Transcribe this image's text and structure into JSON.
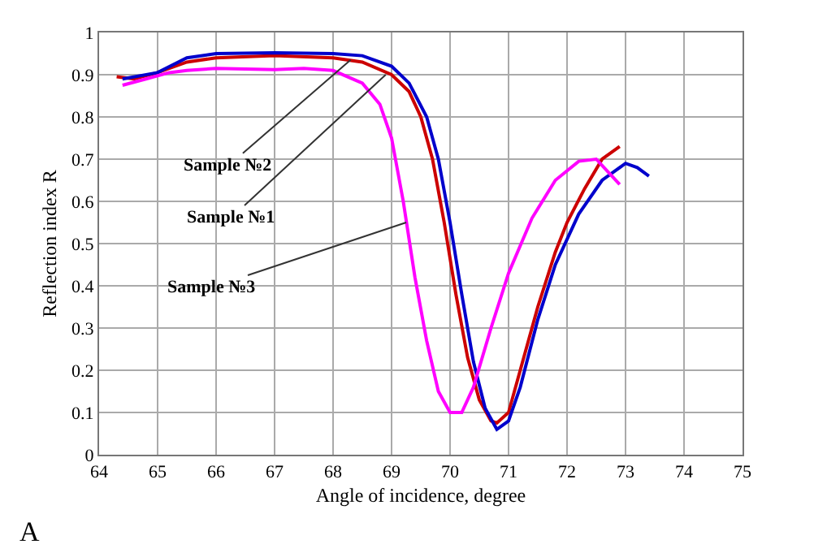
{
  "chart_data": {
    "type": "line",
    "xlabel": "Angle of incidence, degree",
    "ylabel": "Reflection index R",
    "xlim": [
      64,
      75
    ],
    "xticks": [
      64,
      65,
      66,
      67,
      68,
      69,
      70,
      71,
      72,
      73,
      74,
      75
    ],
    "ylim": [
      0,
      1
    ],
    "yticks": [
      0,
      0.1,
      0.2,
      0.3,
      0.4,
      0.5,
      0.6,
      0.7,
      0.8,
      0.9,
      1
    ],
    "grid": true,
    "marker": "none",
    "line_style": "solid",
    "series": [
      {
        "color": "#cc0000",
        "x": [
          64.3,
          64.6,
          65,
          65.5,
          66,
          67,
          68,
          68.5,
          69,
          69.3,
          69.5,
          69.7,
          69.9,
          70.1,
          70.3,
          70.5,
          70.7,
          70.8,
          71,
          71.2,
          71.5,
          71.8,
          72,
          72.3,
          72.6,
          72.9
        ],
        "values": [
          0.895,
          0.89,
          0.905,
          0.93,
          0.94,
          0.945,
          0.94,
          0.93,
          0.9,
          0.86,
          0.8,
          0.7,
          0.55,
          0.38,
          0.23,
          0.13,
          0.08,
          0.075,
          0.1,
          0.2,
          0.35,
          0.48,
          0.55,
          0.63,
          0.7,
          0.73
        ]
      },
      {
        "color": "#0000cc",
        "x": [
          64.4,
          65,
          65.5,
          66,
          67,
          68,
          68.5,
          69,
          69.3,
          69.6,
          69.8,
          70,
          70.2,
          70.4,
          70.6,
          70.8,
          71,
          71.2,
          71.5,
          71.8,
          72.2,
          72.6,
          73,
          73.2,
          73.4
        ],
        "values": [
          0.89,
          0.905,
          0.94,
          0.95,
          0.952,
          0.95,
          0.945,
          0.92,
          0.88,
          0.8,
          0.7,
          0.55,
          0.38,
          0.22,
          0.11,
          0.06,
          0.08,
          0.16,
          0.32,
          0.45,
          0.57,
          0.65,
          0.69,
          0.68,
          0.66
        ]
      },
      {
        "color": "#ff00ff",
        "x": [
          64.4,
          64.8,
          65.2,
          65.5,
          66,
          67,
          67.5,
          68,
          68.5,
          68.8,
          69,
          69.2,
          69.4,
          69.6,
          69.8,
          70,
          70.2,
          70.4,
          70.7,
          71,
          71.4,
          71.8,
          72.2,
          72.5,
          72.7,
          72.9
        ],
        "values": [
          0.875,
          0.89,
          0.905,
          0.91,
          0.915,
          0.912,
          0.915,
          0.91,
          0.88,
          0.83,
          0.75,
          0.6,
          0.42,
          0.27,
          0.15,
          0.1,
          0.1,
          0.16,
          0.3,
          0.43,
          0.56,
          0.65,
          0.695,
          0.7,
          0.67,
          0.64
        ]
      }
    ],
    "annotations": [
      {
        "text": "Sample №2",
        "x": 68.3,
        "y": 0.935
      },
      {
        "text": "Sample №1",
        "x": 68.9,
        "y": 0.9
      },
      {
        "text": "Sample №3",
        "x": 69.25,
        "y": 0.55
      },
      "A"
    ]
  }
}
